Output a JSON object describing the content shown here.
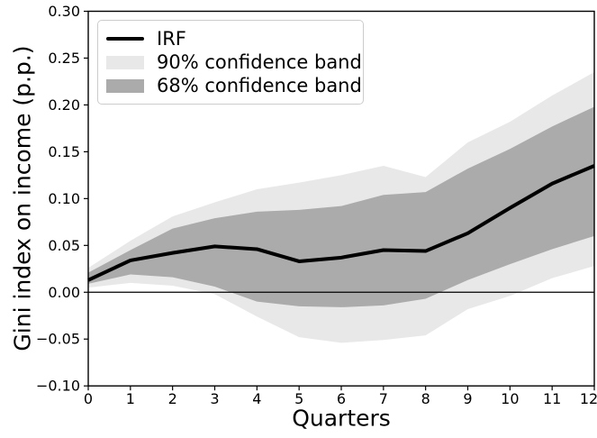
{
  "figure": {
    "xlabel": "Quarters",
    "ylabel": "Gini index on income (p.p.)",
    "background": "#ffffff"
  },
  "legend": {
    "items": [
      {
        "label": "IRF",
        "swatch": "line",
        "color": "#000000"
      },
      {
        "label": "90% confidence band",
        "swatch": "fill",
        "color": "#e8e8e8"
      },
      {
        "label": "68% confidence band",
        "swatch": "fill",
        "color": "#ababab"
      }
    ],
    "position": "upper left"
  },
  "chart_data": {
    "type": "line",
    "title": "",
    "xlabel": "Quarters",
    "ylabel": "Gini index on income (p.p.)",
    "x": [
      0,
      1,
      2,
      3,
      4,
      5,
      6,
      7,
      8,
      9,
      10,
      11,
      12
    ],
    "xlim": [
      0,
      12
    ],
    "ylim": [
      -0.1,
      0.3
    ],
    "x_tick_labels": [
      "0",
      "1",
      "2",
      "3",
      "4",
      "5",
      "6",
      "7",
      "8",
      "9",
      "10",
      "11",
      "12"
    ],
    "y_tick_values": [
      0.3,
      0.25,
      0.2,
      0.15,
      0.1,
      0.05,
      0.0,
      -0.05,
      -0.1
    ],
    "y_tick_labels": [
      "0.30",
      "0.25",
      "0.20",
      "0.15",
      "0.10",
      "0.05",
      "0.00",
      "−0.05",
      "−0.10"
    ],
    "grid": false,
    "zero_line": true,
    "legend_position": "upper left",
    "series": [
      {
        "name": "90% confidence band",
        "type": "band",
        "color": "#e8e8e8",
        "upper": [
          0.026,
          0.055,
          0.081,
          0.096,
          0.11,
          0.117,
          0.125,
          0.135,
          0.123,
          0.16,
          0.182,
          0.21,
          0.235
        ],
        "lower": [
          0.005,
          0.01,
          0.007,
          -0.002,
          -0.026,
          -0.048,
          -0.054,
          -0.051,
          -0.046,
          -0.018,
          -0.004,
          0.015,
          0.028
        ]
      },
      {
        "name": "68% confidence band",
        "type": "band",
        "color": "#ababab",
        "upper": [
          0.021,
          0.045,
          0.068,
          0.079,
          0.086,
          0.088,
          0.092,
          0.104,
          0.107,
          0.132,
          0.153,
          0.177,
          0.198
        ],
        "lower": [
          0.009,
          0.019,
          0.016,
          0.006,
          -0.01,
          -0.015,
          -0.016,
          -0.014,
          -0.007,
          0.013,
          0.03,
          0.046,
          0.06
        ]
      },
      {
        "name": "IRF",
        "type": "line",
        "color": "#000000",
        "line_width": 4,
        "values": [
          0.013,
          0.034,
          0.042,
          0.049,
          0.046,
          0.033,
          0.037,
          0.045,
          0.044,
          0.063,
          0.09,
          0.116,
          0.135
        ]
      }
    ]
  }
}
